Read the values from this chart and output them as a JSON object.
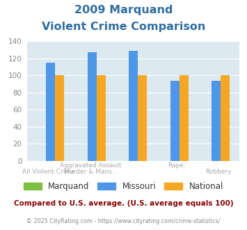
{
  "title_line1": "2009 Marquand",
  "title_line2": "Violent Crime Comparison",
  "marquand": [
    0,
    0,
    0,
    0,
    0
  ],
  "missouri": [
    115,
    127,
    129,
    94,
    94
  ],
  "national": [
    100,
    100,
    100,
    100,
    100
  ],
  "color_marquand": "#7dc142",
  "color_missouri": "#4d96e8",
  "color_national": "#f5a623",
  "ylim": [
    0,
    140
  ],
  "yticks": [
    0,
    20,
    40,
    60,
    80,
    100,
    120,
    140
  ],
  "plot_bg": "#dce9f0",
  "title_color": "#2e6da4",
  "footer_text": "Compared to U.S. average. (U.S. average equals 100)",
  "footer_color": "#8b0000",
  "credit_text": "© 2025 CityRating.com - https://www.cityrating.com/crime-statistics/",
  "credit_color": "#888888",
  "bar_width": 0.22,
  "label_top_row": [
    "",
    "Aggravated Assault",
    "",
    "Rape",
    ""
  ],
  "label_bot_row": [
    "All Violent Crime",
    "Murder & Mans...",
    "",
    "",
    "Robbery"
  ]
}
